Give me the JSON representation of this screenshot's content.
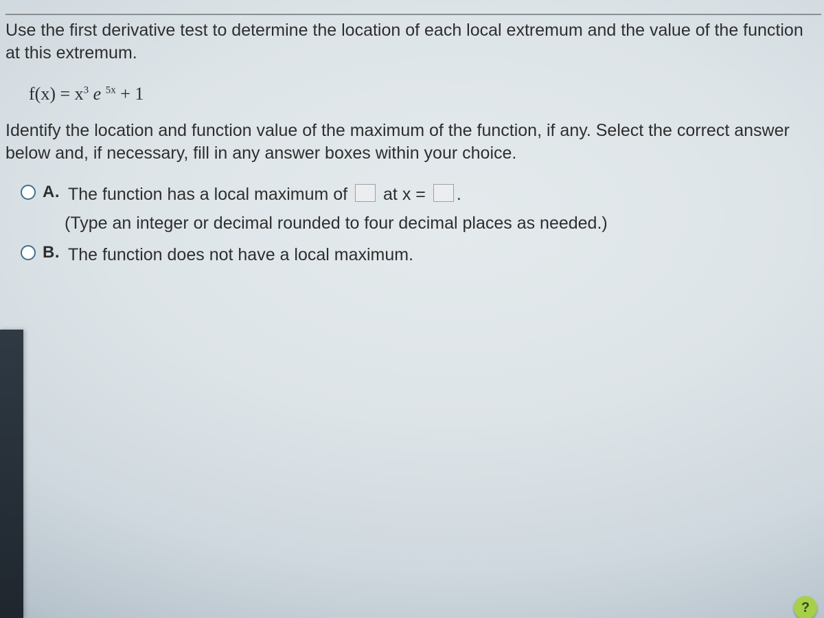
{
  "instruction": "Use the first derivative test to determine the location of each local extremum and the value of the function at this extremum.",
  "formula": {
    "lhs": "f(x) = x",
    "exp1": "3",
    "e": " e ",
    "exp2": "5x",
    "tail": " + 1"
  },
  "identify": "Identify the location and function value of the maximum of the function, if any. Select the correct answer below and, if necessary, fill in any answer boxes within your choice.",
  "options": {
    "A": {
      "letter": "A.",
      "pre": "The function has a local maximum of ",
      "mid": " at x = ",
      "post": ".",
      "direction": "(Type an integer or decimal rounded to four decimal places as needed.)"
    },
    "B": {
      "letter": "B.",
      "text": "The function does not have a local maximum."
    }
  },
  "badge": "?",
  "colors": {
    "radio_border": "#3e6f93",
    "blank_bg": "#ecedee",
    "blank_border": "#9aa1a6",
    "badge_bg": "#a8cf49"
  }
}
